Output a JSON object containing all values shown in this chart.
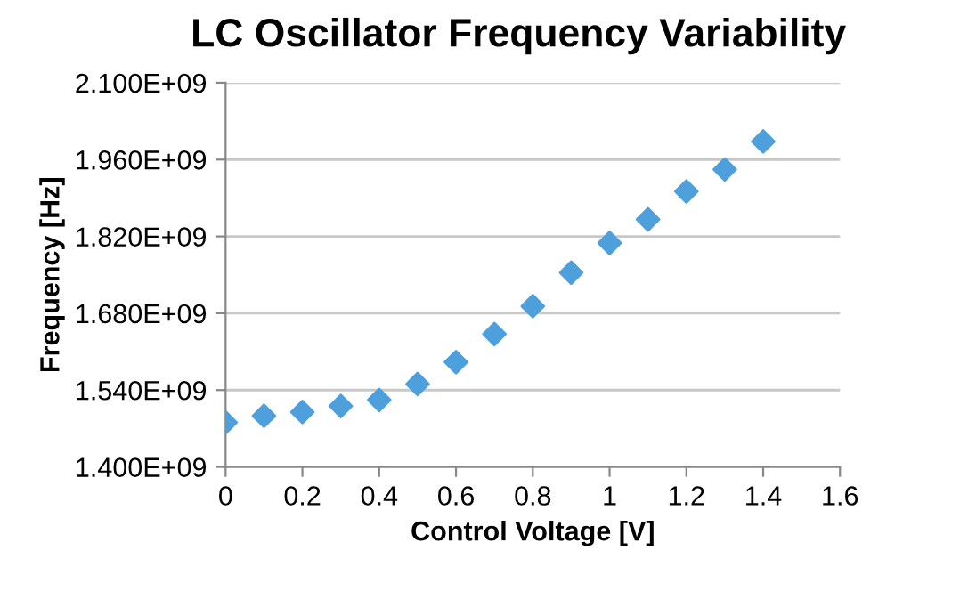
{
  "chart_data": {
    "type": "scatter",
    "title": "LC Oscillator Frequency Variability",
    "xlabel": "Control Voltage [V]",
    "ylabel": "Frequency [Hz]",
    "x": [
      0,
      0.1,
      0.2,
      0.3,
      0.4,
      0.5,
      0.6,
      0.7,
      0.8,
      0.9,
      1.0,
      1.1,
      1.2,
      1.3,
      1.4
    ],
    "series": [
      {
        "color": "#4ea0dc",
        "values": [
          1481000000,
          1493000000,
          1500000000,
          1511000000,
          1522000000,
          1551000000,
          1591000000,
          1642000000,
          1693000000,
          1754000000,
          1808000000,
          1851000000,
          1902000000,
          1942000000,
          1993000000
        ]
      }
    ],
    "marker": "diamond",
    "grid": "y",
    "xlim": [
      0,
      1.6
    ],
    "xticks": [
      0,
      0.2,
      0.4,
      0.6,
      0.8,
      1,
      1.2,
      1.4,
      1.6
    ],
    "ylim": [
      1400000000,
      2100000000
    ],
    "yticks": [
      {
        "value": 1400000000,
        "label": "1.400E+09"
      },
      {
        "value": 1540000000,
        "label": "1.540E+09"
      },
      {
        "value": 1680000000,
        "label": "1.680E+09"
      },
      {
        "value": 1820000000,
        "label": "1.820E+09"
      },
      {
        "value": 1960000000,
        "label": "1.960E+09"
      },
      {
        "value": 2100000000,
        "label": "2.100E+09"
      }
    ]
  }
}
